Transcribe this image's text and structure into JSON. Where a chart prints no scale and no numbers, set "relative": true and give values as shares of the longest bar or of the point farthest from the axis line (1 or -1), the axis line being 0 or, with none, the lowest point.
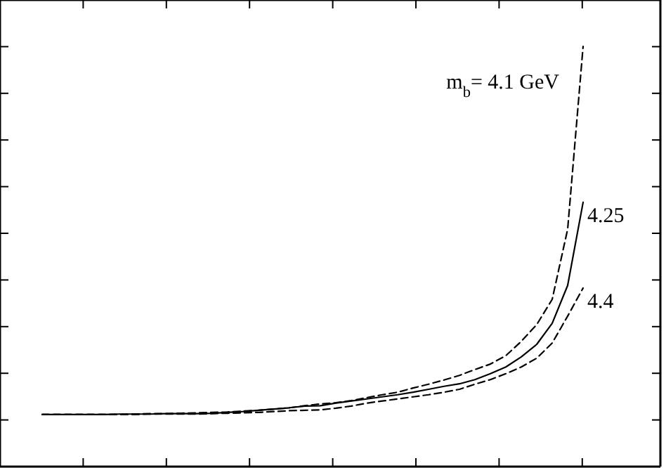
{
  "chart_data": {
    "type": "line",
    "relative": true,
    "marker": "none",
    "categories": [
      null,
      null,
      null,
      null,
      null,
      null,
      null,
      null,
      null,
      null,
      null,
      null,
      null,
      null,
      null,
      null,
      null,
      null,
      null,
      null,
      null,
      null,
      null,
      null,
      null,
      null,
      null,
      null,
      null,
      null,
      null,
      null,
      null,
      null,
      null,
      null
    ],
    "series": [
      {
        "name": "m$_{b}$= 4.1 GeV",
        "color": "#000000",
        "line_style": "dashed",
        "values": [
          0.124,
          0.124,
          0.124,
          0.124,
          0.124,
          0.124,
          0.125,
          0.126,
          0.126,
          0.127,
          0.128,
          0.129,
          0.13,
          0.132,
          0.134,
          0.137,
          0.14,
          0.145,
          0.149,
          0.152,
          0.157,
          0.164,
          0.171,
          0.177,
          0.187,
          0.196,
          0.206,
          0.217,
          0.231,
          0.244,
          0.264,
          0.298,
          0.338,
          0.398,
          0.565,
          1
        ]
      },
      {
        "name": "4.25",
        "color": "#000000",
        "line_style": "solid",
        "values": [
          0.124,
          0.124,
          0.124,
          0.124,
          0.124,
          0.125,
          0.125,
          0.125,
          0.126,
          0.126,
          0.126,
          0.127,
          0.129,
          0.131,
          0.134,
          0.137,
          0.14,
          0.144,
          0.145,
          0.151,
          0.156,
          0.161,
          0.166,
          0.171,
          0.177,
          0.184,
          0.191,
          0.197,
          0.207,
          0.221,
          0.237,
          0.261,
          0.291,
          0.341,
          0.431,
          0.629
        ]
      },
      {
        "name": "4.4",
        "color": "#000000",
        "line_style": "dashed",
        "values": [
          0.124,
          0.124,
          0.124,
          0.124,
          0.124,
          0.124,
          0.124,
          0.125,
          0.125,
          0.125,
          0.125,
          0.126,
          0.127,
          0.128,
          0.129,
          0.131,
          0.133,
          0.134,
          0.135,
          0.139,
          0.144,
          0.151,
          0.156,
          0.161,
          0.166,
          0.171,
          0.177,
          0.184,
          0.196,
          0.207,
          0.221,
          0.237,
          0.258,
          0.294,
          0.358,
          0.425
        ]
      }
    ]
  }
}
